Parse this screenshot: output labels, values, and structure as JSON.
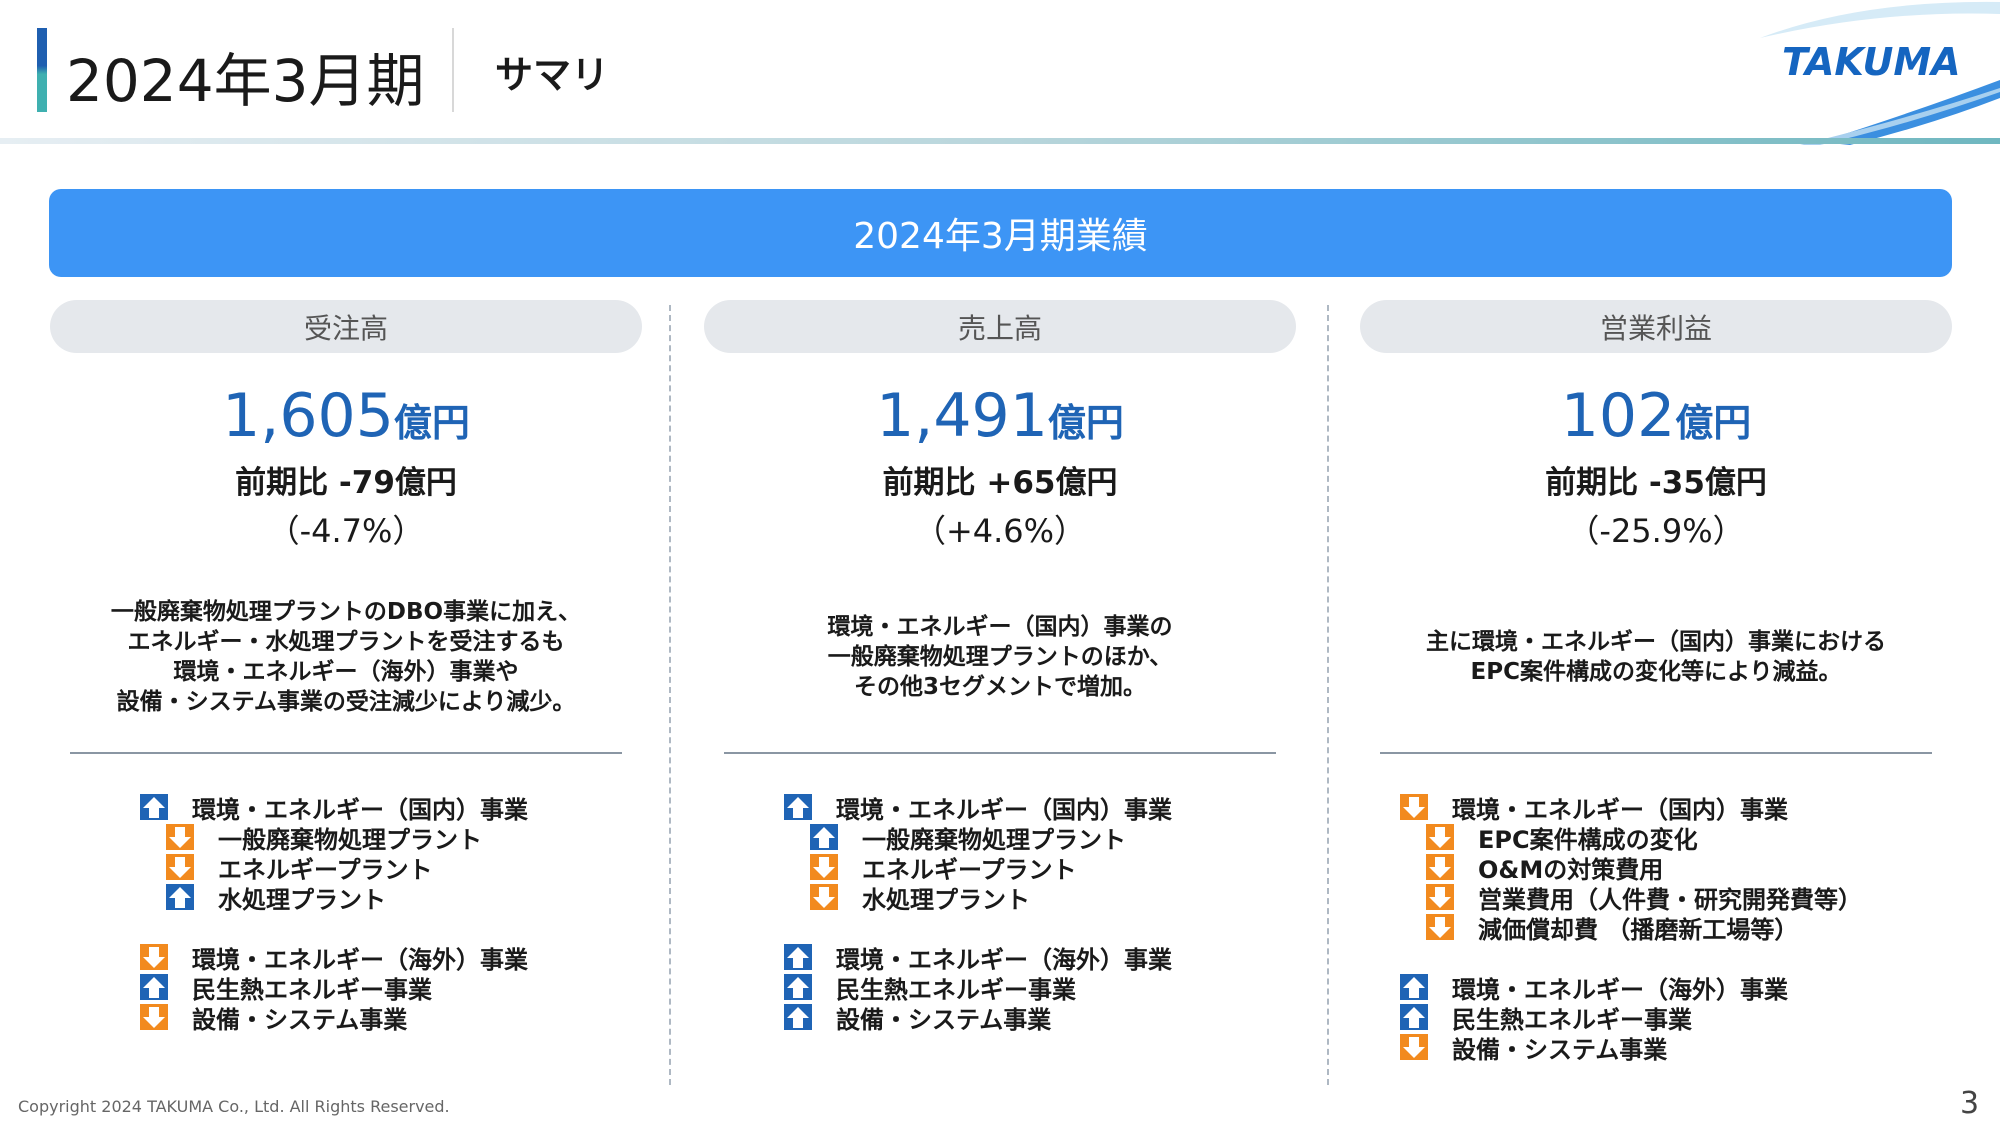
{
  "header": {
    "title": "2024年3月期",
    "subtitle": "サマリ",
    "logo": "TAKUMA",
    "accent_color": "#1f5fb0"
  },
  "banner": {
    "text": "2024年3月期業績",
    "color": "#3d95f5"
  },
  "columns": [
    {
      "label": "受注高",
      "value": "1,605",
      "unit": "億円",
      "diff": "前期比 -79億円",
      "pct": "（-4.7%）",
      "desc": [
        "一般廃棄物処理プラントのDBO事業に加え、",
        "エネルギー・水処理プラントを受注するも",
        "環境・エネルギー（海外）事業や",
        "設備・システム事業の受注減少により減少。"
      ],
      "groups": [
        [
          {
            "text": "環境・エネルギー（国内）事業",
            "dir": "up",
            "indent": 0
          },
          {
            "text": "一般廃棄物処理プラント",
            "dir": "down",
            "indent": 1
          },
          {
            "text": "エネルギープラント",
            "dir": "down",
            "indent": 1
          },
          {
            "text": "水処理プラント",
            "dir": "up",
            "indent": 1
          }
        ],
        [
          {
            "text": "環境・エネルギー（海外）事業",
            "dir": "down",
            "indent": 0
          },
          {
            "text": "民生熱エネルギー事業",
            "dir": "up",
            "indent": 0
          },
          {
            "text": "設備・システム事業",
            "dir": "down",
            "indent": 0
          }
        ]
      ]
    },
    {
      "label": "売上高",
      "value": "1,491",
      "unit": "億円",
      "diff": "前期比 +65億円",
      "pct": "（+4.6%）",
      "desc": [
        "環境・エネルギー（国内）事業の",
        "一般廃棄物処理プラントのほか、",
        "その他3セグメントで増加。"
      ],
      "groups": [
        [
          {
            "text": "環境・エネルギー（国内）事業",
            "dir": "up",
            "indent": 0
          },
          {
            "text": "一般廃棄物処理プラント",
            "dir": "up",
            "indent": 1
          },
          {
            "text": "エネルギープラント",
            "dir": "down",
            "indent": 1
          },
          {
            "text": "水処理プラント",
            "dir": "down",
            "indent": 1
          }
        ],
        [
          {
            "text": "環境・エネルギー（海外）事業",
            "dir": "up",
            "indent": 0
          },
          {
            "text": "民生熱エネルギー事業",
            "dir": "up",
            "indent": 0
          },
          {
            "text": "設備・システム事業",
            "dir": "up",
            "indent": 0
          }
        ]
      ]
    },
    {
      "label": "営業利益",
      "value": "102",
      "unit": "億円",
      "diff": "前期比 -35億円",
      "pct": "（-25.9%）",
      "desc": [
        "主に環境・エネルギー（国内）事業における",
        "EPC案件構成の変化等により減益。"
      ],
      "groups": [
        [
          {
            "text": "環境・エネルギー（国内）事業",
            "dir": "down",
            "indent": 0
          },
          {
            "text": "EPC案件構成の変化",
            "dir": "down",
            "indent": 1
          },
          {
            "text": "O&Mの対策費用",
            "dir": "down",
            "indent": 1
          },
          {
            "text": "営業費用（人件費・研究開発費等）",
            "dir": "down",
            "indent": 1
          },
          {
            "text": "減価償却費 （播磨新工場等）",
            "dir": "down",
            "indent": 1
          }
        ],
        [
          {
            "text": "環境・エネルギー（海外）事業",
            "dir": "up",
            "indent": 0
          },
          {
            "text": "民生熱エネルギー事業",
            "dir": "up",
            "indent": 0
          },
          {
            "text": "設備・システム事業",
            "dir": "down",
            "indent": 0
          }
        ]
      ]
    }
  ],
  "colors": {
    "up_arrow": "#1f64b5",
    "down_arrow": "#f28a1e",
    "value_text": "#1f64b5"
  },
  "footer": {
    "copyright": "Copyright 2024 TAKUMA Co., Ltd. All Rights Reserved.",
    "page_number": "3"
  }
}
